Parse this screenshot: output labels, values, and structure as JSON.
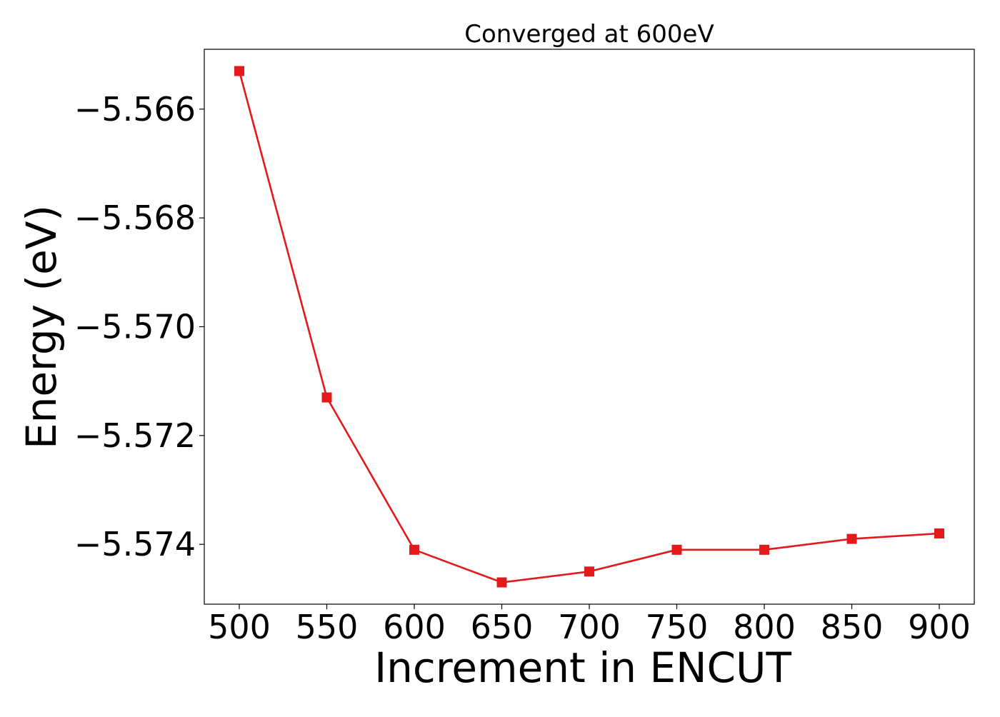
{
  "chart_data": {
    "type": "line",
    "title": "Converged at 600eV",
    "xlabel": "Increment in ENCUT",
    "ylabel": "Energy (eV)",
    "x": [
      500,
      550,
      600,
      650,
      700,
      750,
      800,
      850,
      900
    ],
    "series": [
      {
        "values": [
          -5.5653,
          -5.5713,
          -5.5741,
          -5.5747,
          -5.5745,
          -5.5741,
          -5.5741,
          -5.5739,
          -5.5738
        ],
        "color": "#e31a1c",
        "marker": "square"
      }
    ],
    "xticks": [
      500,
      550,
      600,
      650,
      700,
      750,
      800,
      850,
      900
    ],
    "xtick_labels": [
      "500",
      "550",
      "600",
      "650",
      "700",
      "750",
      "800",
      "850",
      "900"
    ],
    "yticks": [
      -5.566,
      -5.568,
      -5.57,
      -5.572,
      -5.574
    ],
    "ytick_labels": [
      "−5.566",
      "−5.568",
      "−5.570",
      "−5.572",
      "−5.574"
    ],
    "xlim": [
      480,
      920
    ],
    "ylim": [
      -5.5751,
      -5.5649
    ],
    "grid": false,
    "legend": "none"
  }
}
